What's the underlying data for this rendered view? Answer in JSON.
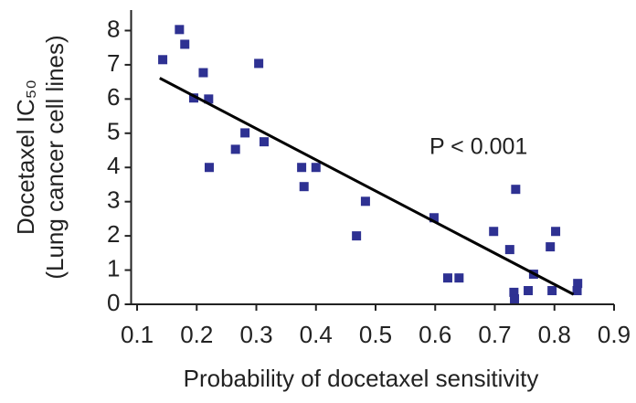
{
  "chart_data": {
    "type": "scatter",
    "xlabel": "Probability of docetaxel sensitivity",
    "ylabel": [
      "Docetaxel IC₅₀",
      "(Lung cancer cell lines)"
    ],
    "annotation": "P < 0.001",
    "color": "#2e3192",
    "x": [
      0.143,
      0.171,
      0.18,
      0.195,
      0.211,
      0.22,
      0.221,
      0.265,
      0.281,
      0.304,
      0.313,
      0.376,
      0.38,
      0.4,
      0.468,
      0.483,
      0.598,
      0.621,
      0.64,
      0.698,
      0.725,
      0.732,
      0.733,
      0.735,
      0.756,
      0.765,
      0.793,
      0.802,
      0.796,
      0.839,
      0.838
    ],
    "values": [
      7.15,
      8.03,
      7.6,
      6.03,
      6.77,
      6.0,
      4.0,
      4.53,
      5.01,
      7.04,
      4.75,
      4.0,
      3.44,
      4.0,
      2.0,
      3.01,
      2.53,
      0.77,
      0.77,
      2.13,
      1.6,
      0.35,
      0.16,
      3.36,
      0.4,
      0.88,
      1.68,
      2.13,
      0.4,
      0.61,
      0.4
    ],
    "fit": {
      "x": [
        0.138,
        0.832
      ],
      "values": [
        6.61,
        0.29
      ],
      "color": "#000000"
    },
    "xlim": [
      0.09,
      0.9
    ],
    "ylim": [
      0,
      8.6
    ],
    "xticks": [
      0.1,
      0.2,
      0.3,
      0.4,
      0.5,
      0.6,
      0.7,
      0.8,
      0.9
    ],
    "yticks": [
      0,
      1,
      2,
      3,
      4,
      5,
      6,
      7,
      8
    ]
  }
}
